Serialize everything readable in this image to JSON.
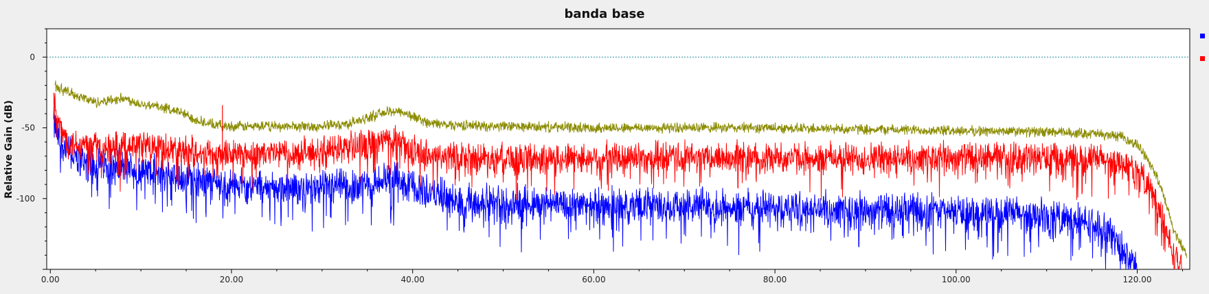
{
  "chart_data": {
    "type": "line",
    "title": "banda base",
    "ylabel": "Relative Gain (dB)",
    "xlabel": "",
    "xlim": [
      -0.4,
      125.8
    ],
    "ylim": [
      -150,
      20
    ],
    "x_ticks": [
      "0.00",
      "20.00",
      "40.00",
      "60.00",
      "80.00",
      "100.00",
      "120.00"
    ],
    "y_ticks": [
      "0",
      "-50",
      "-100"
    ],
    "reference_line": {
      "y": 0,
      "color": "#1e8b9c"
    },
    "legend": {
      "placement": "right",
      "entries": [
        {
          "color": "#0000ff"
        },
        {
          "color": "#ff0000"
        }
      ]
    },
    "series": [
      {
        "color": "#8b8b00",
        "x": [
          0.5,
          2,
          5,
          8,
          10,
          12,
          14,
          16,
          18,
          20,
          25,
          30,
          33,
          35,
          37,
          38.5,
          40,
          42,
          45,
          50,
          60,
          70,
          80,
          90,
          100,
          110,
          115,
          118,
          120,
          121,
          122,
          123,
          124,
          125.5
        ],
        "y": [
          -20,
          -25,
          -32,
          -29,
          -33,
          -35,
          -38,
          -44,
          -48,
          -49,
          -49,
          -49,
          -47,
          -43,
          -39,
          -38,
          -42,
          -47,
          -48,
          -49,
          -50,
          -50,
          -50,
          -51,
          -52,
          -53,
          -54,
          -56,
          -62,
          -70,
          -82,
          -100,
          -122,
          -140
        ]
      },
      {
        "color": "#ff0000",
        "x": [
          0.3,
          1,
          2,
          4,
          6,
          8,
          10,
          12,
          15,
          18,
          20,
          25,
          30,
          35,
          37,
          38,
          40,
          42,
          45,
          50,
          60,
          70,
          80,
          90,
          100,
          110,
          115,
          118,
          120,
          121,
          122,
          123,
          124,
          125
        ],
        "y": [
          -32,
          -50,
          -60,
          -62,
          -65,
          -63,
          -62,
          -63,
          -66,
          -68,
          -68,
          -68,
          -67,
          -62,
          -58,
          -60,
          -66,
          -70,
          -71,
          -71,
          -71,
          -71,
          -71,
          -71,
          -71,
          -71,
          -72,
          -74,
          -80,
          -88,
          -100,
          -120,
          -140,
          -150
        ]
      },
      {
        "color": "#0000ff",
        "x": [
          0.3,
          1,
          3,
          5,
          8,
          10,
          12,
          15,
          18,
          20,
          25,
          30,
          35,
          37,
          38,
          40,
          42,
          45,
          50,
          60,
          70,
          80,
          90,
          100,
          105,
          110,
          113,
          115,
          117,
          118,
          119,
          120
        ],
        "y": [
          -45,
          -60,
          -72,
          -75,
          -78,
          -80,
          -82,
          -85,
          -88,
          -90,
          -92,
          -93,
          -90,
          -86,
          -85,
          -90,
          -96,
          -102,
          -103,
          -104,
          -105,
          -106,
          -108,
          -109,
          -110,
          -112,
          -115,
          -118,
          -125,
          -132,
          -140,
          -150
        ]
      }
    ]
  }
}
